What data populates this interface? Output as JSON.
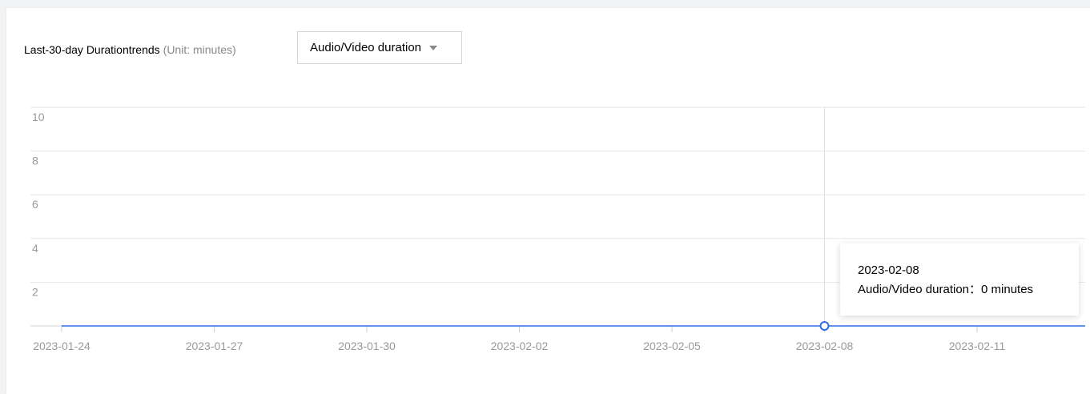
{
  "header": {
    "title": "Last-30-day Durationtrends",
    "unit": "(Unit: minutes)"
  },
  "metric_select": {
    "value": "Audio/Video duration"
  },
  "tooltip": {
    "date": "2023-02-08",
    "label": "Audio/Video duration",
    "separator": "：",
    "value_text": "0 minutes"
  },
  "colors": {
    "series": "#2e6be6",
    "grid": "#e6e6e6",
    "axis": "#d0d0d0",
    "tick_text": "#999999",
    "crosshair": "#e0e0e0"
  },
  "chart_data": {
    "type": "line",
    "title": "Last-30-day Durationtrends",
    "ylabel": "",
    "xlabel": "",
    "ylim": [
      0,
      10
    ],
    "yticks": [
      2,
      4,
      6,
      8,
      10
    ],
    "xticks": [
      "2023-01-24",
      "2023-01-27",
      "2023-01-30",
      "2023-02-02",
      "2023-02-05",
      "2023-02-08",
      "2023-02-11"
    ],
    "x": [
      "2023-01-24",
      "2023-01-25",
      "2023-01-26",
      "2023-01-27",
      "2023-01-28",
      "2023-01-29",
      "2023-01-30",
      "2023-01-31",
      "2023-02-01",
      "2023-02-02",
      "2023-02-03",
      "2023-02-04",
      "2023-02-05",
      "2023-02-06",
      "2023-02-07",
      "2023-02-08",
      "2023-02-09",
      "2023-02-10",
      "2023-02-11",
      "2023-02-12"
    ],
    "series": [
      {
        "values": [
          0,
          0,
          0,
          0,
          0,
          0,
          0,
          0,
          0,
          0,
          0,
          0,
          0,
          0,
          0,
          0,
          0,
          0,
          0,
          0
        ]
      }
    ],
    "highlight_x": "2023-02-08",
    "grid": true
  }
}
